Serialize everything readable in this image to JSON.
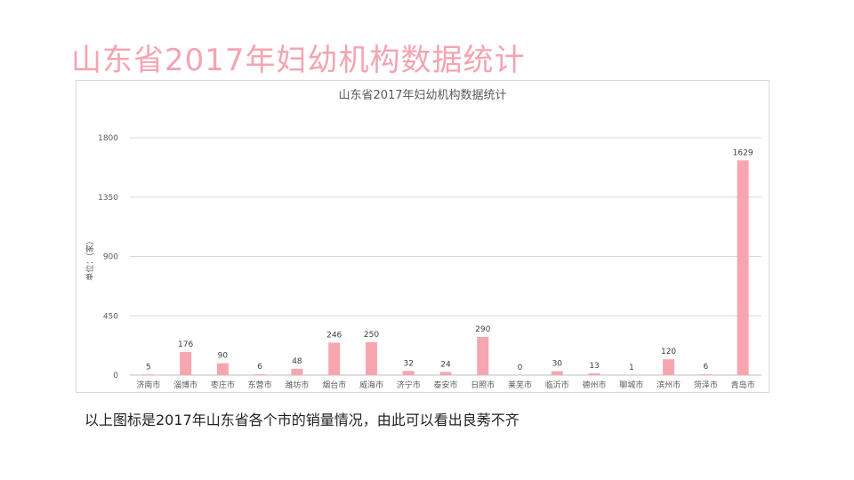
{
  "slide": {
    "title": "山东省2017年妇幼机构数据统计",
    "caption": "以上图标是2017年山东省各个市的销量情况，由此可以看出良莠不齐"
  },
  "colors": {
    "title": "#f4a4b2",
    "bar": "#f7a6b0",
    "grid": "#d9d9d9",
    "text": "#595959"
  },
  "chart_data": {
    "type": "bar",
    "title": "山东省2017年妇幼机构数据统计",
    "ylabel": "单位：（家）",
    "xlabel": "",
    "categories": [
      "济南市",
      "淄博市",
      "枣庄市",
      "东营市",
      "潍坊市",
      "烟台市",
      "威海市",
      "济宁市",
      "泰安市",
      "日照市",
      "莱芜市",
      "临沂市",
      "德州市",
      "聊城市",
      "滨州市",
      "菏泽市",
      "青岛市"
    ],
    "values": [
      5,
      176,
      90,
      6,
      48,
      246,
      250,
      32,
      24,
      290,
      0,
      30,
      13,
      1,
      120,
      6,
      1629
    ],
    "ylim": [
      0,
      1800
    ],
    "yticks": [
      0,
      450,
      900,
      1350,
      1800
    ],
    "grid": true,
    "data_labels": true,
    "legend": "none"
  }
}
